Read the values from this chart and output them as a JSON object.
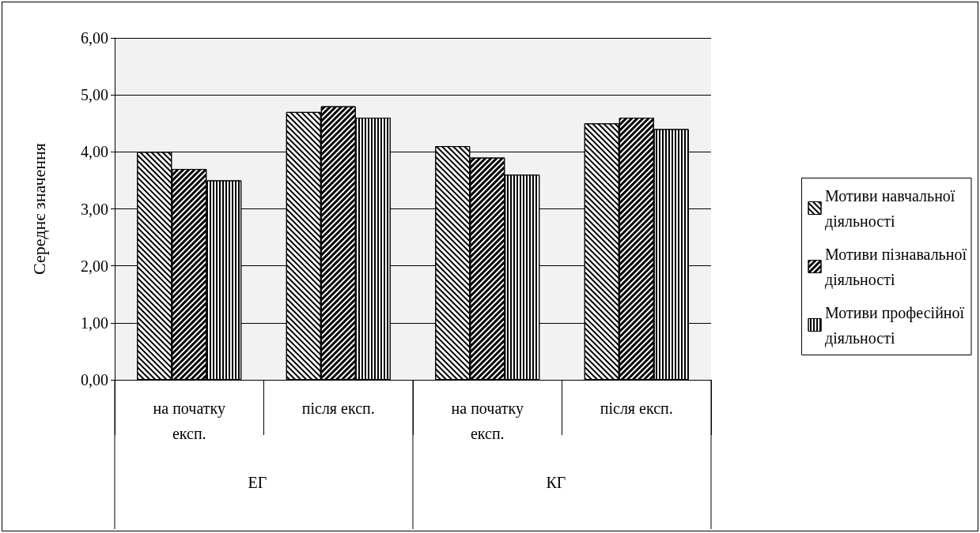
{
  "chart_data": {
    "type": "bar",
    "ylabel": "Середнє значення",
    "categories": [
      "на початку експ.",
      "після експ.",
      "на початку експ.",
      "після експ."
    ],
    "series": [
      {
        "name": "Мотиви навчальної діяльності",
        "color": "#ffffff",
        "values": [
          4.0,
          4.7,
          4.1,
          4.5
        ]
      },
      {
        "name": "Мотиви пізнавальної діяльності",
        "color": "#ffffff",
        "values": [
          3.7,
          4.8,
          3.9,
          4.6
        ]
      },
      {
        "name": "Мотиви професійної діяльності",
        "color": "#ffffff",
        "values": [
          3.5,
          4.6,
          3.6,
          4.4
        ]
      }
    ],
    "ylim": [
      0,
      6
    ],
    "yticks": [
      {
        "value": 0,
        "label": "0,00"
      },
      {
        "value": 1,
        "label": "1,00"
      },
      {
        "value": 2,
        "label": "2,00"
      },
      {
        "value": 3,
        "label": "3,00"
      },
      {
        "value": 4,
        "label": "4,00"
      },
      {
        "value": 5,
        "label": "5,00"
      },
      {
        "value": 6,
        "label": "6,00"
      }
    ],
    "annotations": [
      "ЕГ",
      "КГ"
    ],
    "grid": "y",
    "legend": "right"
  }
}
